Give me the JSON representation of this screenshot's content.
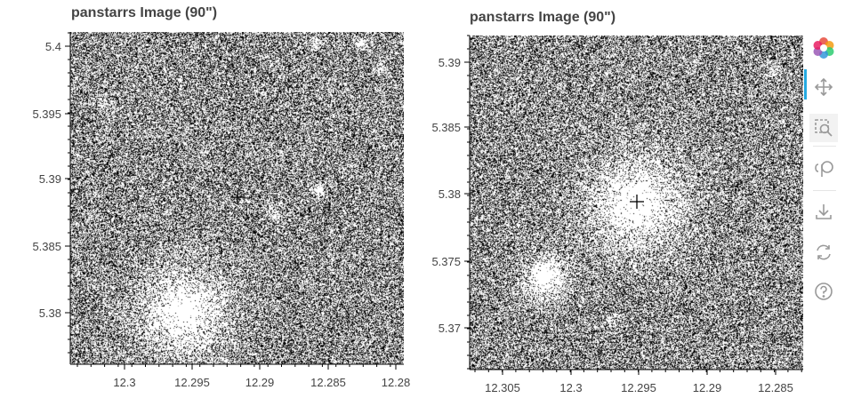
{
  "plots": [
    {
      "title": "panstarrs Image (90\")",
      "y_ticks": [
        "5.4",
        "5.395",
        "5.39",
        "5.385",
        "5.38"
      ],
      "x_ticks": [
        "12.3",
        "12.295",
        "12.29",
        "12.285",
        "12.28"
      ],
      "marker": "+"
    },
    {
      "title": "panstarrs Image (90\")",
      "y_ticks": [
        "5.39",
        "5.385",
        "5.38",
        "5.375",
        "5.37"
      ],
      "x_ticks": [
        "12.305",
        "12.3",
        "12.295",
        "12.29",
        "12.285"
      ],
      "marker": "+"
    }
  ],
  "toolbar": {
    "items": [
      {
        "name": "bokeh-logo-icon"
      },
      {
        "name": "pan-icon",
        "active": true
      },
      {
        "name": "box-zoom-icon"
      },
      {
        "name": "lasso-select-icon"
      },
      {
        "name": "save-icon"
      },
      {
        "name": "reset-icon"
      },
      {
        "name": "help-icon"
      }
    ],
    "accent": "#26aae1"
  }
}
